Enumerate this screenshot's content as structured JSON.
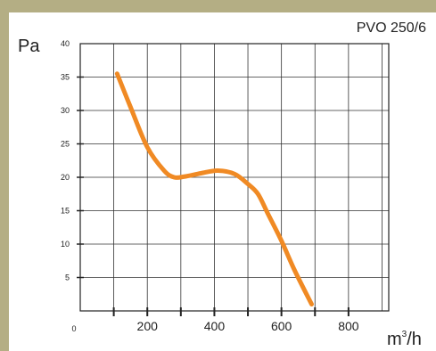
{
  "chart_data": {
    "type": "line",
    "title": "PVO 250/6",
    "ylabel": "Pa",
    "xlabel_base": "m",
    "xlabel_sup": "3",
    "xlabel_tail": "/h",
    "xlim": [
      0,
      920
    ],
    "ylim": [
      0,
      40
    ],
    "grid": true,
    "x_major_ticks": [
      200,
      400,
      600,
      800
    ],
    "x_minor_ticks": [
      100,
      300,
      500,
      700
    ],
    "x_origin_label": "0",
    "y_ticks": [
      5,
      10,
      15,
      20,
      25,
      30,
      35,
      40
    ],
    "series": [
      {
        "color": "#f08a24",
        "x": [
          110,
          150,
          200,
          250,
          280,
          310,
          360,
          410,
          460,
          500,
          530,
          560,
          600,
          640,
          690
        ],
        "y": [
          35.5,
          30.5,
          24.5,
          21,
          20,
          20.1,
          20.6,
          21,
          20.5,
          19,
          17.5,
          14.5,
          10.5,
          6,
          1
        ]
      }
    ]
  }
}
